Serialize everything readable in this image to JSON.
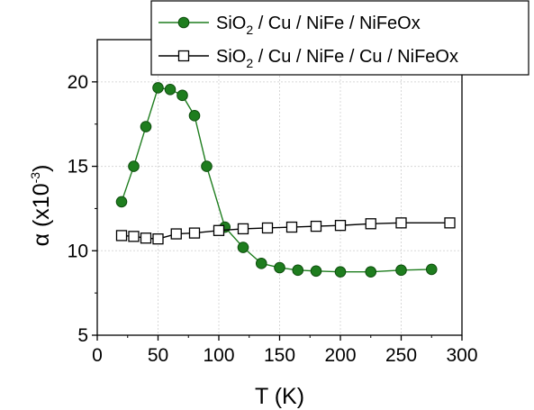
{
  "chart_data": {
    "type": "line",
    "xlabel": "T (K)",
    "ylabel": {
      "main": "α (x10",
      "exp": "-3",
      "close": ")"
    },
    "xlim": [
      0,
      300
    ],
    "ylim": [
      5,
      22.5
    ],
    "xticks": [
      0,
      50,
      100,
      150,
      200,
      250,
      300
    ],
    "yticks": [
      5,
      10,
      15,
      20
    ],
    "grid": true,
    "legend_position": "top-right",
    "series": [
      {
        "name": "SiO2 / Cu / NiFe / NiFeOx",
        "legend": {
          "pre": "SiO",
          "sub": "2",
          "post": " / Cu / NiFe / NiFeOx"
        },
        "color": "#1e7d1e",
        "marker": "filled-circle",
        "x": [
          20,
          30,
          40,
          50,
          60,
          70,
          80,
          90,
          105,
          120,
          135,
          150,
          165,
          180,
          200,
          225,
          250,
          275
        ],
        "y": [
          12.9,
          15.0,
          17.35,
          19.65,
          19.55,
          19.2,
          18.0,
          15.0,
          11.4,
          10.2,
          9.25,
          9.0,
          8.85,
          8.8,
          8.75,
          8.75,
          8.85,
          8.9
        ]
      },
      {
        "name": "SiO2 / Cu / NiFe / Cu / NiFeOx",
        "legend": {
          "pre": "SiO",
          "sub": "2",
          "post": " / Cu / NiFe / Cu / NiFeOx"
        },
        "color": "#000000",
        "marker": "open-square",
        "x": [
          20,
          30,
          40,
          50,
          65,
          80,
          100,
          120,
          140,
          160,
          180,
          200,
          225,
          250,
          290
        ],
        "y": [
          10.9,
          10.85,
          10.75,
          10.7,
          11.0,
          11.05,
          11.2,
          11.3,
          11.35,
          11.4,
          11.45,
          11.5,
          11.6,
          11.65,
          11.65
        ]
      }
    ]
  }
}
